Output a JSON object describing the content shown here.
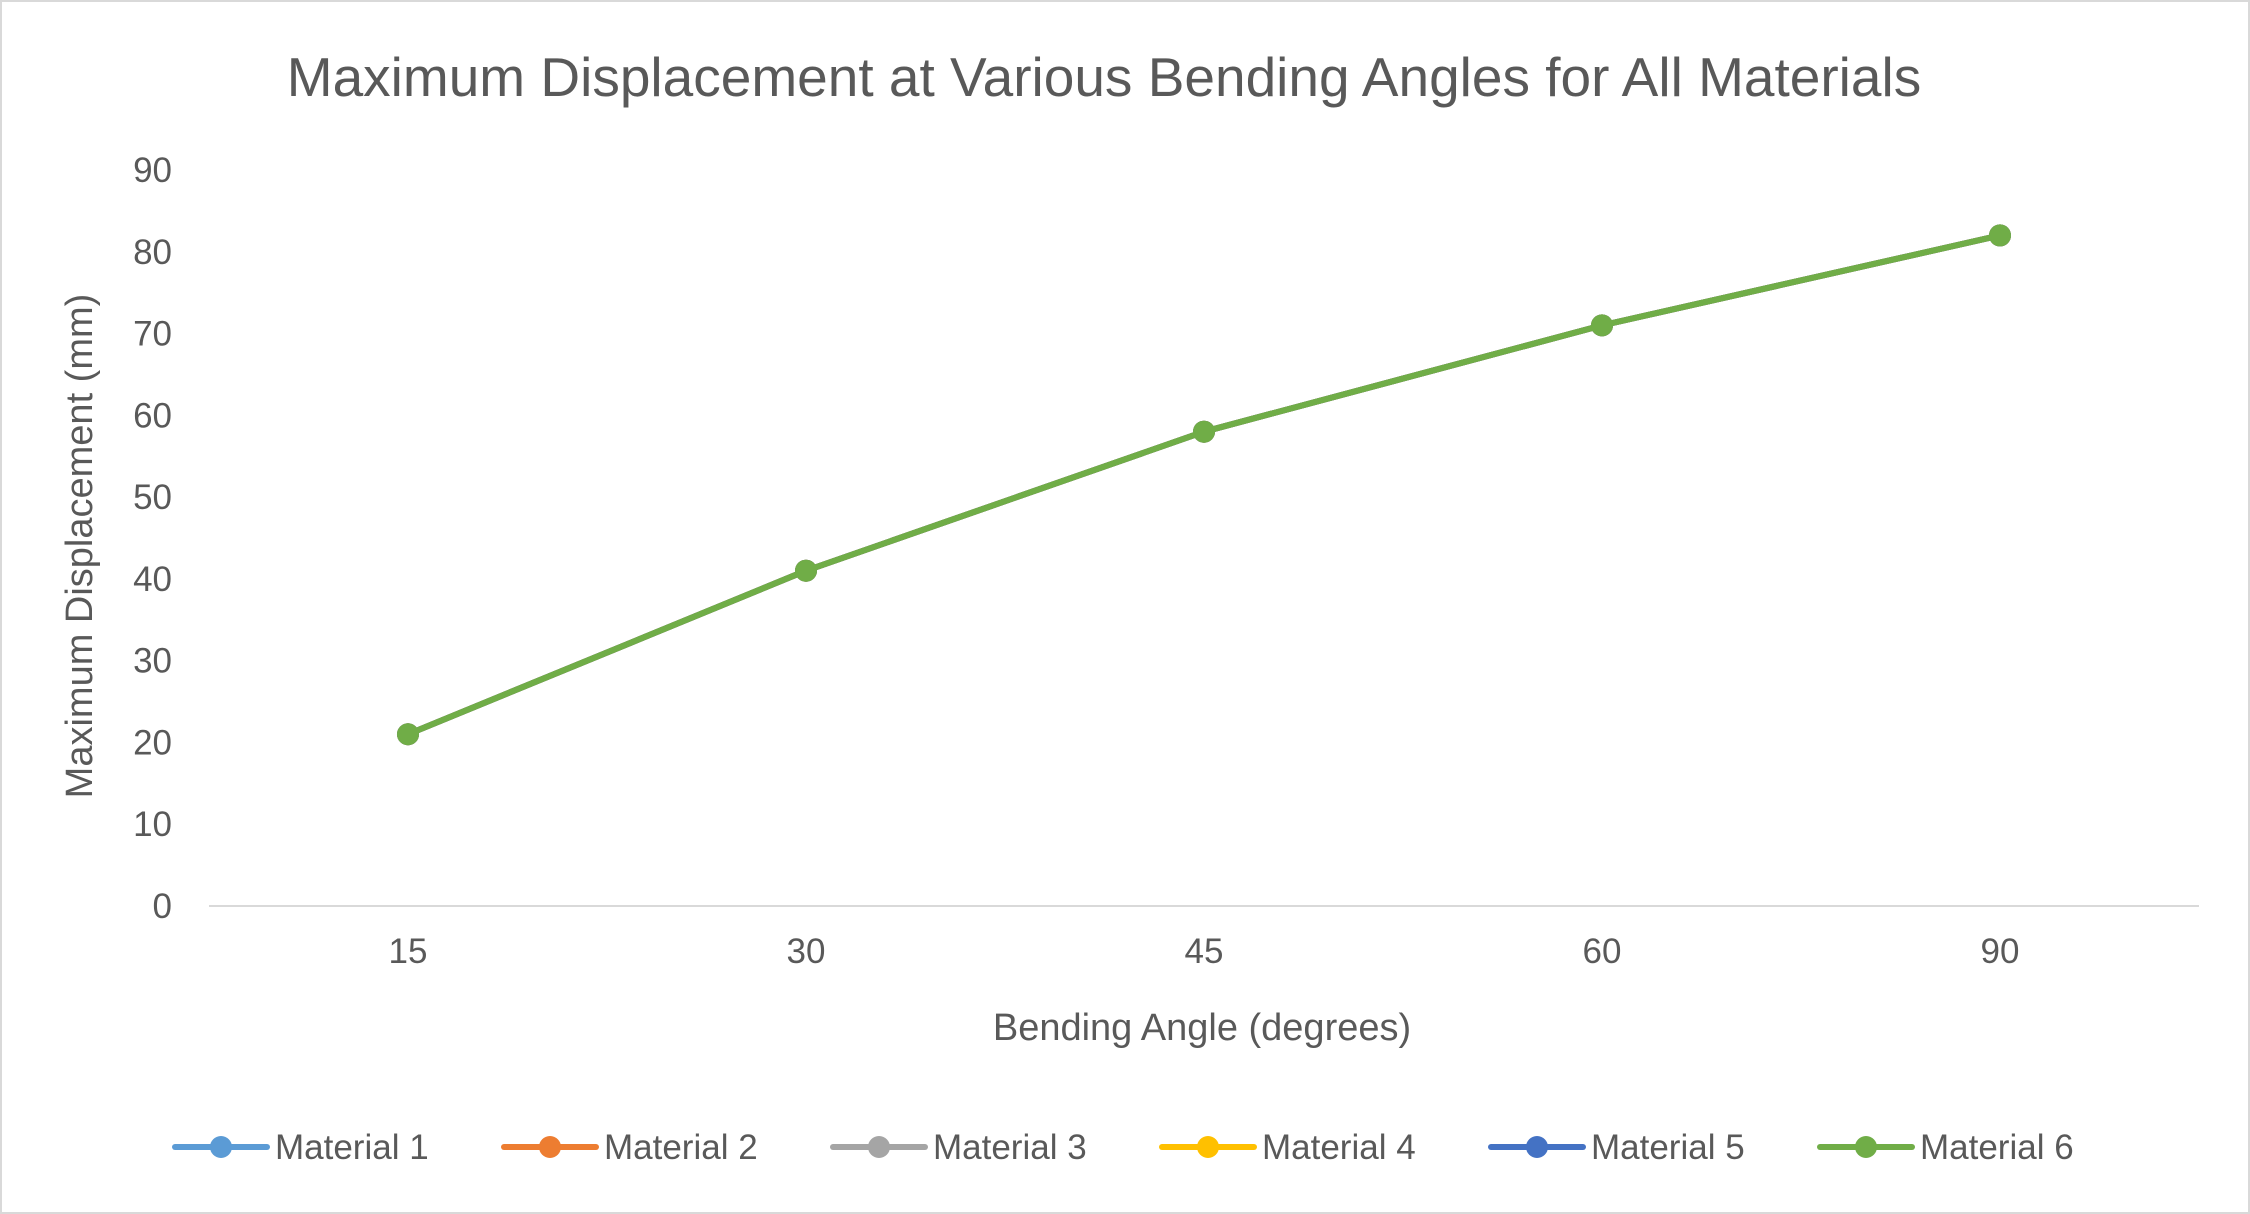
{
  "chart_data": {
    "type": "line",
    "title": "Maximum Displacement at Various Bending Angles for All Materials",
    "xlabel": "Bending Angle (degrees)",
    "ylabel": "Maximum Displacement (mm)",
    "categories": [
      "15",
      "30",
      "45",
      "60",
      "90"
    ],
    "ylim": [
      0,
      90
    ],
    "yticks": [
      "0",
      "10",
      "20",
      "30",
      "40",
      "50",
      "60",
      "70",
      "80",
      "90"
    ],
    "grid": false,
    "legend_position": "bottom",
    "series": [
      {
        "name": "Material 1",
        "color": "#5b9bd5",
        "values": [
          21,
          41,
          58,
          71,
          82
        ]
      },
      {
        "name": "Material 2",
        "color": "#ed7d31",
        "values": [
          21,
          41,
          58,
          71,
          82
        ]
      },
      {
        "name": "Material 3",
        "color": "#a5a5a5",
        "values": [
          21,
          41,
          58,
          71,
          82
        ]
      },
      {
        "name": "Material 4",
        "color": "#ffc000",
        "values": [
          21,
          41,
          58,
          71,
          82
        ]
      },
      {
        "name": "Material 5",
        "color": "#4472c4",
        "values": [
          21,
          41,
          58,
          71,
          82
        ]
      },
      {
        "name": "Material 6",
        "color": "#70ad47",
        "values": [
          21,
          41,
          58,
          71,
          82
        ]
      }
    ]
  }
}
